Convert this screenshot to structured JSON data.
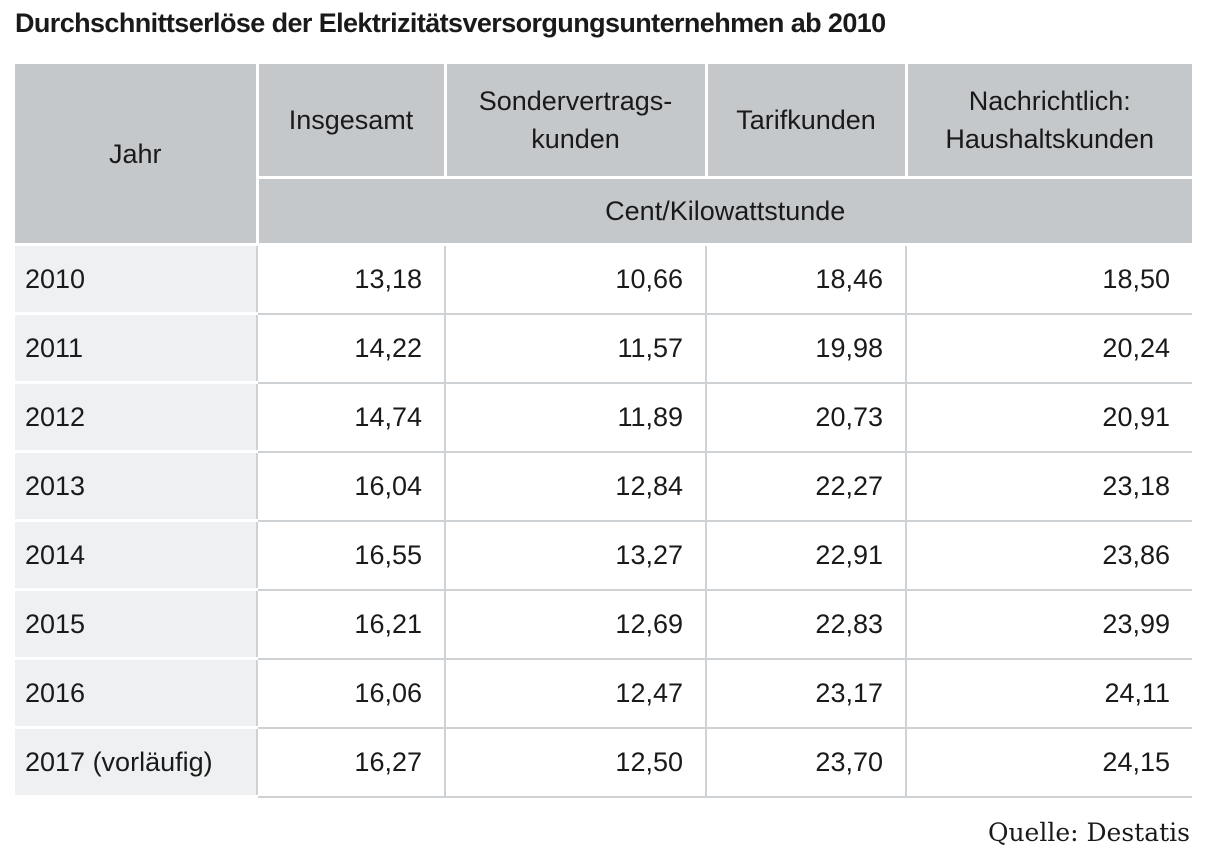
{
  "title": "Durchschnittserlöse der Elektrizitätsversorgungsunternehmen ab 2010",
  "table": {
    "header": {
      "year": "Jahr",
      "insgesamt": "Insgesamt",
      "sonder_line1": "Sondervertrags-",
      "sonder_line2": "kunden",
      "tarif": "Tarifkunden",
      "haushalt_line1": "Nachrichtlich:",
      "haushalt_line2": "Haushaltskunden",
      "unit": "Cent/Kilowattstunde"
    },
    "rows": [
      {
        "year": "2010",
        "insgesamt": "13,18",
        "sonder": "10,66",
        "tarif": "18,46",
        "haushalt": "18,50"
      },
      {
        "year": "2011",
        "insgesamt": "14,22",
        "sonder": "11,57",
        "tarif": "19,98",
        "haushalt": "20,24"
      },
      {
        "year": "2012",
        "insgesamt": "14,74",
        "sonder": "11,89",
        "tarif": "20,73",
        "haushalt": "20,91"
      },
      {
        "year": "2013",
        "insgesamt": "16,04",
        "sonder": "12,84",
        "tarif": "22,27",
        "haushalt": "23,18"
      },
      {
        "year": "2014",
        "insgesamt": "16,55",
        "sonder": "13,27",
        "tarif": "22,91",
        "haushalt": "23,86"
      },
      {
        "year": "2015",
        "insgesamt": "16,21",
        "sonder": "12,69",
        "tarif": "22,83",
        "haushalt": "23,99"
      },
      {
        "year": "2016",
        "insgesamt": "16,06",
        "sonder": "12,47",
        "tarif": "23,17",
        "haushalt": "24,11"
      },
      {
        "year": "2017 (vorläufig)",
        "insgesamt": "16,27",
        "sonder": "12,50",
        "tarif": "23,70",
        "haushalt": "24,15"
      }
    ]
  },
  "source": "Quelle: Destatis",
  "colors": {
    "header_bg": "#c5c8ca",
    "year_cell_bg": "#eef0f1",
    "grid_line": "#cfd2d4",
    "text": "#1a1a1a"
  }
}
